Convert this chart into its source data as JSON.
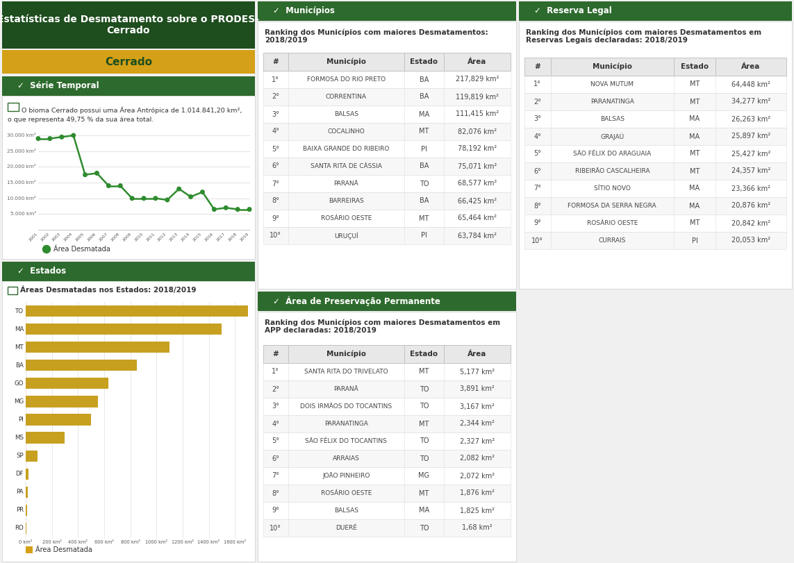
{
  "title": "Estatísticas de Desmatamento sobre o PRODES-\nCerrado",
  "cerrado_label": "Cerrado",
  "serie_temporal_label": "Série Temporal",
  "bioma_text_line1": "O bioma Cerrado possui uma Área Antrópica de 1.014.841,20 km²,",
  "bioma_text_line2": "o que representa 49,75 % da sua área total.",
  "years": [
    2001,
    2002,
    2003,
    2004,
    2005,
    2006,
    2007,
    2008,
    2009,
    2010,
    2011,
    2012,
    2013,
    2014,
    2015,
    2016,
    2017,
    2018,
    2019
  ],
  "deforestation": [
    29000,
    29000,
    29500,
    30000,
    17500,
    18000,
    14000,
    14000,
    10000,
    10000,
    10000,
    9500,
    13000,
    10500,
    12000,
    6500,
    7000,
    6500,
    6500
  ],
  "estados_label": "Estados",
  "estados_title": "Áreas Desmatadas nos Estados: 2018/2019",
  "estados_states": [
    "TO",
    "MA",
    "MT",
    "BA",
    "GO",
    "MG",
    "PI",
    "MS",
    "SP",
    "DF",
    "PA",
    "PR",
    "RO"
  ],
  "estados_values": [
    1700,
    1500,
    1100,
    850,
    630,
    550,
    500,
    300,
    90,
    20,
    15,
    10,
    5
  ],
  "municipios_label": "Municípios",
  "municipios_title": "Ranking dos Municípios com maiores Desmatamentos:\n2018/2019",
  "municipios_header": [
    "#",
    "Município",
    "Estado",
    "Área"
  ],
  "municipios_data": [
    [
      "1°",
      "FORMOSA DO RIO PRETO",
      "BA",
      "217,829 km²"
    ],
    [
      "2°",
      "CORRENTINA",
      "BA",
      "119,819 km²"
    ],
    [
      "3°",
      "BALSAS",
      "MA",
      "111,415 km²"
    ],
    [
      "4°",
      "COCALINHO",
      "MT",
      "82,076 km²"
    ],
    [
      "5°",
      "BAIXA GRANDE DO RIBEIRO",
      "PI",
      "78,192 km²"
    ],
    [
      "6°",
      "SANTA RITA DE CÁSSIA",
      "BA",
      "75,071 km²"
    ],
    [
      "7°",
      "PARANÃ",
      "TO",
      "68,577 km²"
    ],
    [
      "8°",
      "BARREIRAS",
      "BA",
      "66,425 km²"
    ],
    [
      "9°",
      "ROSÁRIO OESTE",
      "MT",
      "65,464 km²"
    ],
    [
      "10°",
      "URUÇUÍ",
      "PI",
      "63,784 km²"
    ]
  ],
  "app_label": "Área de Preservação Permanente",
  "app_title": "Ranking dos Municípios com maiores Desmatamentos em\nAPP declaradas: 2018/2019",
  "app_header": [
    "#",
    "Município",
    "Estado",
    "Área"
  ],
  "app_data": [
    [
      "1°",
      "SANTA RITA DO TRIVELATO",
      "MT",
      "5,177 km²"
    ],
    [
      "2°",
      "PARANÃ",
      "TO",
      "3,891 km²"
    ],
    [
      "3°",
      "DOIS IRMÃOS DO TOCANTINS",
      "TO",
      "3,167 km²"
    ],
    [
      "4°",
      "PARANATINGA",
      "MT",
      "2,344 km²"
    ],
    [
      "5°",
      "SÃO FÉLIX DO TOCANTINS",
      "TO",
      "2,327 km²"
    ],
    [
      "6°",
      "ARRAIAS",
      "TO",
      "2,082 km²"
    ],
    [
      "7°",
      "JOÃO PINHEIRO",
      "MG",
      "2,072 km²"
    ],
    [
      "8°",
      "ROSÁRIO OESTE",
      "MT",
      "1,876 km²"
    ],
    [
      "9°",
      "BALSAS",
      "MA",
      "1,825 km²"
    ],
    [
      "10°",
      "DUERÉ",
      "TO",
      "1,68 km²"
    ]
  ],
  "reserva_label": "Reserva Legal",
  "reserva_title": "Ranking dos Municípios com maiores Desmatamentos em\nReservas Legais declaradas: 2018/2019",
  "reserva_header": [
    "#",
    "Município",
    "Estado",
    "Área"
  ],
  "reserva_data": [
    [
      "1°",
      "NOVA MUTUM",
      "MT",
      "64,448 km²"
    ],
    [
      "2°",
      "PARANATINGA",
      "MT",
      "34,277 km²"
    ],
    [
      "3°",
      "BALSAS",
      "MA",
      "26,263 km²"
    ],
    [
      "4°",
      "GRAJAÚ",
      "MA",
      "25,897 km²"
    ],
    [
      "5°",
      "SÃO FÉLIX DO ARAGUAIA",
      "MT",
      "25,427 km²"
    ],
    [
      "6°",
      "RIBEIRÃO CASCALHEIRA",
      "MT",
      "24,357 km²"
    ],
    [
      "7°",
      "SÍTIO NOVO",
      "MA",
      "23,366 km²"
    ],
    [
      "8°",
      "FORMOSA DA SERRA NEGRA",
      "MA",
      "20,876 km²"
    ],
    [
      "9°",
      "ROSÁRIO OESTE",
      "MT",
      "20,842 km²"
    ],
    [
      "10°",
      "CURRAIS",
      "PI",
      "20,053 km²"
    ]
  ],
  "dark_green": "#1e4d1e",
  "medium_green": "#2d6a2d",
  "bar_color": "#c8a020",
  "line_color": "#2e8b2e",
  "gold_color": "#d4a017",
  "border_color": "#cccccc",
  "bg_outer": "#f0f0f0"
}
